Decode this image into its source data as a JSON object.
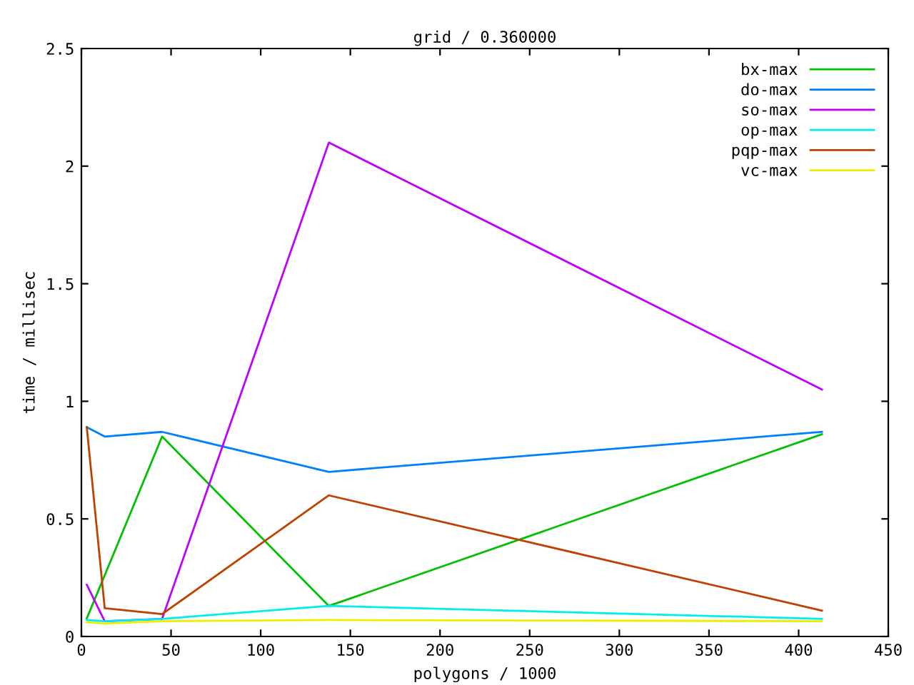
{
  "chart_data": {
    "type": "line",
    "title": "grid / 0.360000",
    "xlabel": "polygons / 1000",
    "ylabel": "time / millisec",
    "x": [
      3,
      13,
      45,
      138,
      413
    ],
    "series": [
      {
        "name": "bx-max",
        "color": "#00c000",
        "values": [
          0.077,
          0.26,
          0.85,
          0.13,
          0.86
        ]
      },
      {
        "name": "do-max",
        "color": "#0080ff",
        "values": [
          0.89,
          0.85,
          0.87,
          0.7,
          0.87
        ]
      },
      {
        "name": "so-max",
        "color": "#c000ff",
        "values": [
          0.22,
          0.065,
          0.075,
          2.1,
          1.05
        ]
      },
      {
        "name": "op-max",
        "color": "#00eeee",
        "values": [
          0.07,
          0.065,
          0.075,
          0.13,
          0.075
        ]
      },
      {
        "name": "pqp-max",
        "color": "#c04000",
        "values": [
          0.89,
          0.12,
          0.095,
          0.6,
          0.11
        ]
      },
      {
        "name": "vc-max",
        "color": "#eeee00",
        "values": [
          0.06,
          0.055,
          0.065,
          0.07,
          0.065
        ]
      }
    ],
    "xlim": [
      0,
      450
    ],
    "ylim": [
      0,
      2.5
    ],
    "xticks": [
      0,
      50,
      100,
      150,
      200,
      250,
      300,
      350,
      400,
      450
    ],
    "yticks": [
      0,
      0.5,
      1,
      1.5,
      2,
      2.5
    ],
    "grid": false,
    "legend": "top right",
    "marker": "none",
    "line_style": "solid"
  }
}
